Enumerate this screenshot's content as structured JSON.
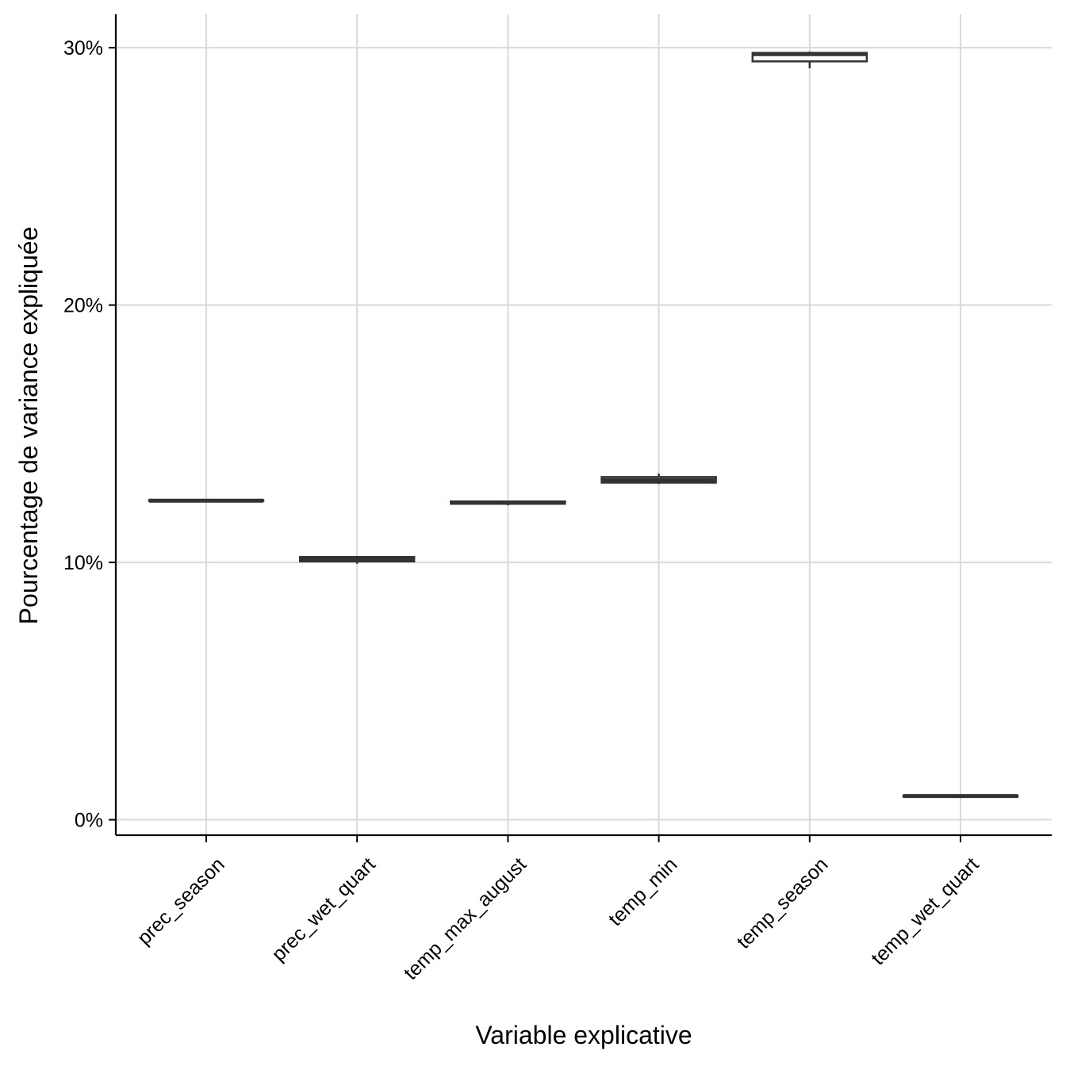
{
  "chart_data": {
    "type": "boxplot",
    "title": "",
    "xlabel": "Variable explicative",
    "ylabel": "Pourcentage de variance expliquée",
    "ylim": [
      -0.6,
      31.3
    ],
    "y_ticks": [
      0,
      10,
      20,
      30
    ],
    "y_tick_labels": [
      "0%",
      "10%",
      "20%",
      "30%"
    ],
    "grid": true,
    "legend": "none",
    "colors": {
      "box_stroke": "#333333",
      "box_fill": "#ffffff",
      "grid": "#d9d9d9",
      "axis": "#000000"
    },
    "categories": [
      "prec_season",
      "prec_wet_quart",
      "temp_max_august",
      "temp_min",
      "temp_season",
      "temp_wet_quart"
    ],
    "boxes": [
      {
        "category": "prec_season",
        "min": 12.38,
        "q1": 12.39,
        "median": 12.4,
        "q3": 12.42,
        "max": 12.43
      },
      {
        "category": "prec_wet_quart",
        "min": 9.95,
        "q1": 10.04,
        "median": 10.12,
        "q3": 10.21,
        "max": 10.25
      },
      {
        "category": "temp_max_august",
        "min": 12.22,
        "q1": 12.28,
        "median": 12.32,
        "q3": 12.37,
        "max": 12.39
      },
      {
        "category": "temp_min",
        "min": 13.05,
        "q1": 13.1,
        "median": 13.2,
        "q3": 13.32,
        "max": 13.45
      },
      {
        "category": "temp_season",
        "min": 29.2,
        "q1": 29.47,
        "median": 29.75,
        "q3": 29.8,
        "max": 29.85
      },
      {
        "category": "temp_wet_quart",
        "min": 0.88,
        "q1": 0.9,
        "median": 0.92,
        "q3": 0.94,
        "max": 0.96
      }
    ]
  }
}
